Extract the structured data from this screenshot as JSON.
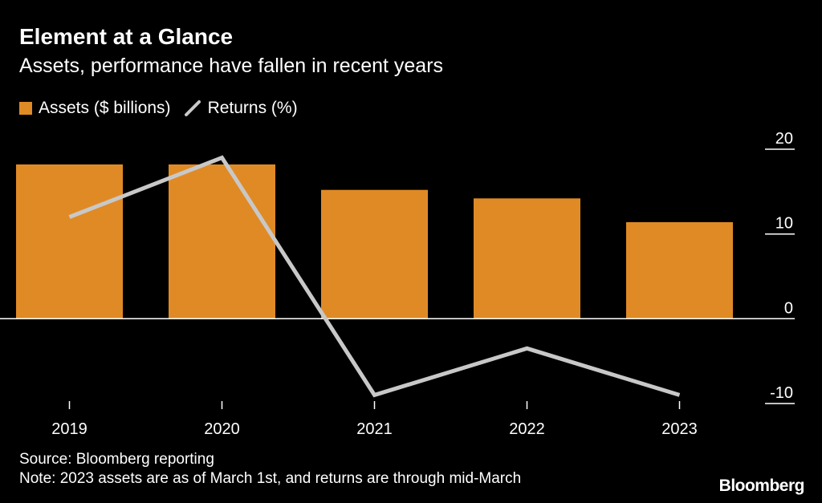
{
  "header": {
    "title": "Element at a Glance",
    "subtitle": "Assets, performance have fallen in recent years"
  },
  "legend": {
    "assets_label": "Assets ($ billions)",
    "returns_label": "Returns (%)"
  },
  "colors": {
    "bar": "#E08A26",
    "line": "#C8C8C8",
    "axis": "#FFFFFF",
    "background": "#000000"
  },
  "chart_data": {
    "type": "bar",
    "title": "Element at a Glance",
    "subtitle": "Assets, performance have fallen in recent years",
    "categories": [
      "2019",
      "2020",
      "2021",
      "2022",
      "2023"
    ],
    "series": [
      {
        "name": "Assets ($ billions)",
        "kind": "bar",
        "values": [
          18.2,
          18.2,
          15.2,
          14.2,
          11.4
        ]
      },
      {
        "name": "Returns (%)",
        "kind": "line",
        "values": [
          12.0,
          19.0,
          -9.0,
          -3.5,
          -9.0
        ]
      }
    ],
    "ylim": [
      -10,
      20
    ],
    "yticks": [
      20,
      10,
      0,
      -10
    ],
    "ytick_labels": [
      "20",
      "10",
      "0",
      "-10"
    ],
    "y_axis_side": "right",
    "xlabel": "",
    "ylabel": "",
    "grid": false,
    "legend_position": "top-left"
  },
  "footer": {
    "source": "Source: Bloomberg reporting",
    "note": "Note: 2023 assets are as of March 1st, and returns are through mid-March",
    "brand": "Bloomberg"
  }
}
